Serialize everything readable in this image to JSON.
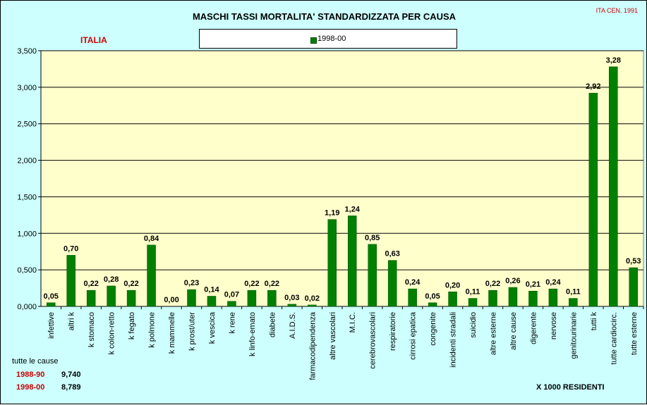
{
  "title": "MASCHI TASSI MORTALITA' STANDARDIZZATA PER CAUSA",
  "source_label": "ITA CEN. 1991",
  "region_label": "ITALIA",
  "note": "X 1000 RESIDENTI",
  "all_causes": {
    "title": "tutte le cause",
    "rows": [
      {
        "period": "1988-90",
        "value": "9,740"
      },
      {
        "period": "1998-00",
        "value": "8,789"
      }
    ]
  },
  "colors": {
    "background": "#ccfffe",
    "plot_area": "#ffffcc",
    "bar": "#008000",
    "accent_text": "#cc0000"
  },
  "chart_data": {
    "type": "bar",
    "title": "MASCHI TASSI MORTALITA' STANDARDIZZATA PER CAUSA",
    "xlabel": "",
    "ylabel": "",
    "ylim": [
      0,
      3.5
    ],
    "yticks": [
      "0,000",
      "0,500",
      "1,000",
      "1,500",
      "2,000",
      "2,500",
      "3,000",
      "3,500"
    ],
    "grid": true,
    "legend_position": "top-center",
    "categories": [
      "infettive",
      "altri k",
      "k stomaco",
      "k colon-retto",
      "k fegato",
      "k polmone",
      "k mammelle",
      "k prost/uter",
      "k vescica",
      "k rene",
      "k linfo-emato",
      "diabete",
      "A.I.D.S.",
      "farmacodipendenza",
      "altre vascolari",
      "M.I.C.",
      "cerebrovascolari",
      "respiratorie",
      "cirrosi epatica",
      "congenite",
      "incidenti stradali",
      "suicidio",
      "altre esterne",
      "altre cause",
      "digerente",
      "nervose",
      "genitourinarie",
      "tutti k",
      "tutte cardiocirc.",
      "tutte esterne"
    ],
    "series": [
      {
        "name": "1998-00",
        "values": [
          0.05,
          0.7,
          0.22,
          0.28,
          0.22,
          0.84,
          0.0,
          0.23,
          0.14,
          0.07,
          0.22,
          0.22,
          0.03,
          0.02,
          1.19,
          1.24,
          0.85,
          0.63,
          0.24,
          0.05,
          0.2,
          0.11,
          0.22,
          0.26,
          0.21,
          0.24,
          0.11,
          2.92,
          3.28,
          0.53
        ],
        "labels": [
          "0,05",
          "0,70",
          "0,22",
          "0,28",
          "0,22",
          "0,84",
          "0,00",
          "0,23",
          "0,14",
          "0,07",
          "0,22",
          "0,22",
          "0,03",
          "0,02",
          "1,19",
          "1,24",
          "0,85",
          "0,63",
          "0,24",
          "0,05",
          "0,20",
          "0,11",
          "0,22",
          "0,26",
          "0,21",
          "0,24",
          "0,11",
          "2,92",
          "3,28",
          "0,53"
        ]
      }
    ]
  }
}
